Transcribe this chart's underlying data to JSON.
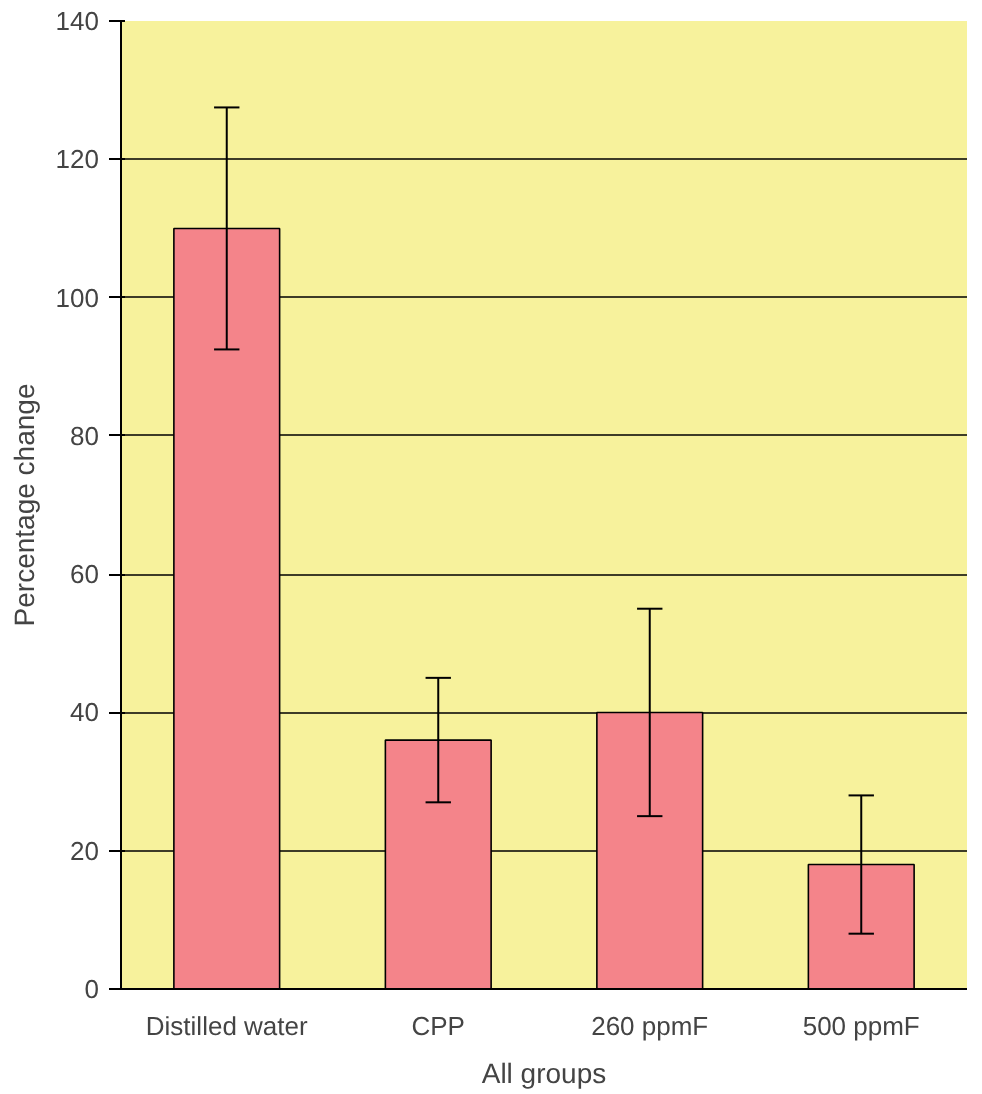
{
  "chart_data": {
    "type": "bar",
    "xlabel": "All groups",
    "ylabel": "Percentage change",
    "categories": [
      "Distilled water",
      "CPP",
      "260 ppmF",
      "500 ppmF"
    ],
    "values": [
      110,
      36,
      40,
      18
    ],
    "errors": [
      [
        92.5,
        127.5
      ],
      [
        27,
        45
      ],
      [
        25,
        55
      ],
      [
        8,
        28
      ]
    ],
    "color": "#f4848a",
    "ylim": [
      0,
      140
    ],
    "yticks": [
      0,
      20,
      40,
      60,
      80,
      100,
      120,
      140
    ],
    "grid": "y"
  }
}
